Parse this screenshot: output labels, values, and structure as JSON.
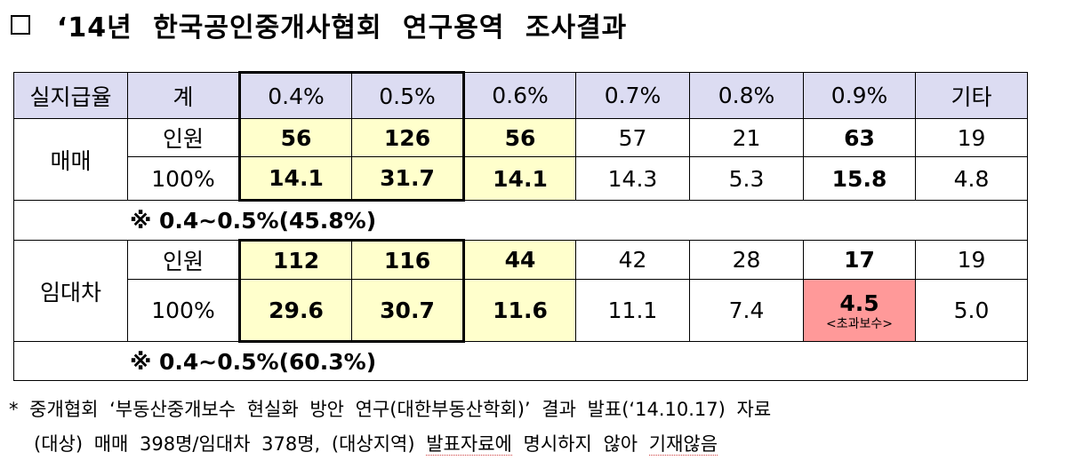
{
  "title": {
    "box_glyph": "",
    "text": "‘14년 한국공인중개사협회 연구용역 조사결과"
  },
  "table": {
    "headers": [
      "실지급율",
      "계",
      "0.4%",
      "0.5%",
      "0.6%",
      "0.7%",
      "0.8%",
      "0.9%",
      "기타"
    ],
    "sale": {
      "label": "매매",
      "count_label": "인원",
      "total_label": "100%",
      "counts": [
        "56",
        "126",
        "56",
        "57",
        "21",
        "63",
        "19"
      ],
      "percents": [
        "14.1",
        "31.7",
        "14.1",
        "14.3",
        "5.3",
        "15.8",
        "4.8"
      ],
      "note": "※  0.4∼0.5%(45.8%)"
    },
    "lease": {
      "label": "임대차",
      "count_label": "인원",
      "total_label": "100%",
      "counts": [
        "112",
        "116",
        "44",
        "42",
        "28",
        "17",
        "19"
      ],
      "percents": [
        "29.6",
        "30.7",
        "11.6",
        "11.1",
        "7.4",
        "4.5",
        "5.0"
      ],
      "excess_label": "<초과보수>",
      "note": "※  0.4∼0.5%(60.3%)"
    }
  },
  "footnote": {
    "line1": "* 중개협회 ‘부동산중개보수 현실화 방안 연구(대한부동산학회)’ 결과 발표(‘14.10.17) 자료",
    "line2_a": "(대상) 매매 398명/임대차 378명, (대상지역) ",
    "line2_b": "발표자료에",
    "line2_c": " 명시하지 않아 ",
    "line2_d": "기재않음"
  },
  "colors": {
    "header_bg": "#dcdcf2",
    "highlight_yellow": "#ffffcc",
    "highlight_red": "#ff9999"
  }
}
